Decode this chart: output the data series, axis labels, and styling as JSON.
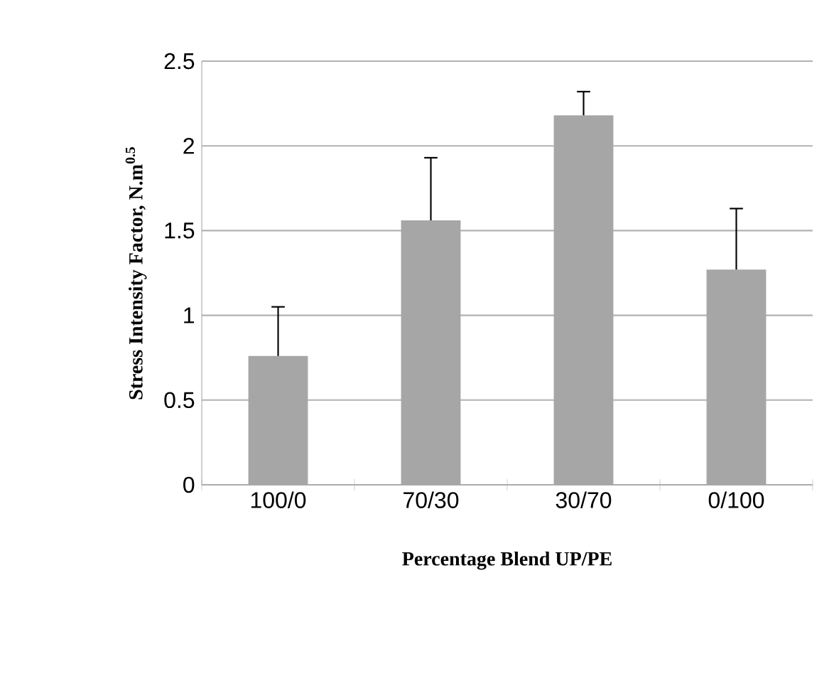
{
  "chart_data": {
    "type": "bar",
    "xlabel": "Percentage Blend  UP/PE",
    "ylabel": "Stress Intensity Factor, N.m$^{0.5}$",
    "categories": [
      "100/0",
      "70/30",
      "30/70",
      "0/100"
    ],
    "values": [
      0.76,
      1.56,
      2.18,
      1.27
    ],
    "errors": [
      [
        0.76,
        1.05
      ],
      [
        1.56,
        1.93
      ],
      [
        2.18,
        2.32
      ],
      [
        1.27,
        1.63
      ]
    ],
    "color": "#a6a6a6",
    "ylim": [
      0,
      2.5
    ],
    "yticks": [
      0,
      0.5,
      1,
      1.5,
      2,
      2.5
    ],
    "grid": "y"
  }
}
